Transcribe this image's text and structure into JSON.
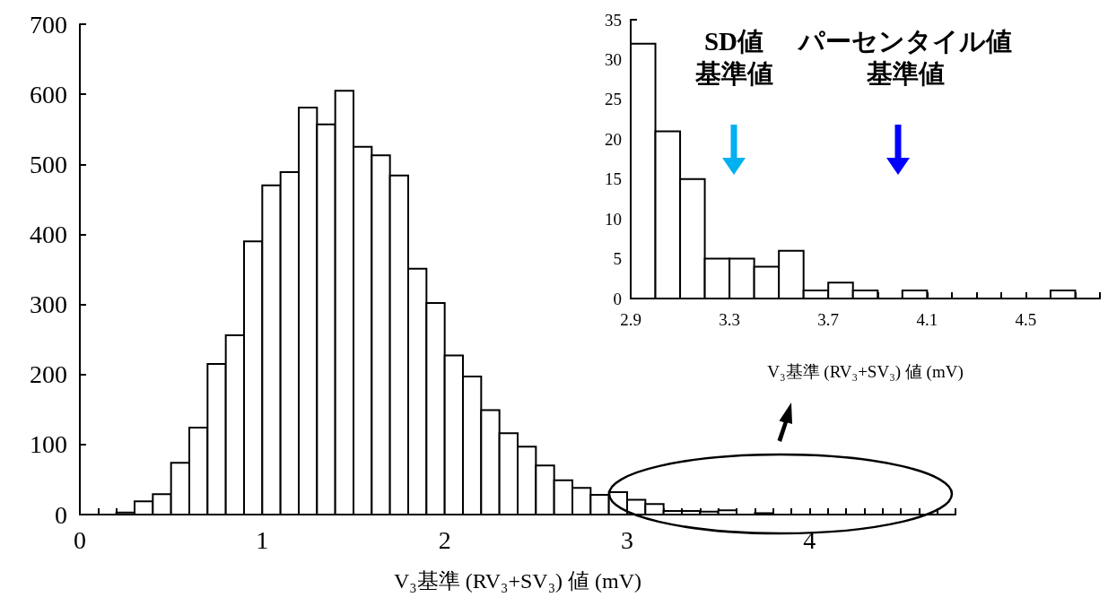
{
  "chart_data": [
    {
      "type": "histogram",
      "xlabel": "V₃基準 (RV₃+SV₃) 値 (mV)",
      "color": "#ffffff",
      "bins": [
        0,
        0.1,
        0.2,
        0.3,
        0.4,
        0.5,
        0.6,
        0.7,
        0.8,
        0.9,
        1.0,
        1.1,
        1.2,
        1.3,
        1.4,
        1.5,
        1.6,
        1.7,
        1.8,
        1.9,
        2.0,
        2.1,
        2.2,
        2.3,
        2.4,
        2.5,
        2.6,
        2.7,
        2.8,
        2.9,
        3.0,
        3.1,
        3.2,
        3.3,
        3.4,
        3.5,
        3.6,
        3.7,
        3.8,
        3.9,
        4.0,
        4.1,
        4.2,
        4.3,
        4.4,
        4.5,
        4.6,
        4.7,
        4.8
      ],
      "values": [
        0,
        0,
        3,
        19,
        29,
        74,
        124,
        215,
        256,
        390,
        470,
        489,
        581,
        557,
        605,
        525,
        513,
        484,
        351,
        302,
        227,
        197,
        149,
        116,
        97,
        70,
        49,
        38,
        28,
        32,
        21,
        15,
        5,
        5,
        4,
        6,
        null,
        2,
        null,
        0,
        null,
        0,
        0,
        0,
        0,
        0,
        null,
        0
      ],
      "xlim": [
        0,
        4.8
      ],
      "xticks": [
        0,
        {
          "value": 0.1,
          "label": null
        },
        {
          "value": 0.2,
          "label": null
        },
        {
          "value": 0.3,
          "label": null
        },
        {
          "value": 0.4,
          "label": null
        },
        {
          "value": 0.5,
          "label": null
        },
        {
          "value": 0.6,
          "label": null
        },
        {
          "value": 0.7,
          "label": null
        },
        {
          "value": 0.8,
          "label": null
        },
        {
          "value": 0.9,
          "label": null
        },
        1,
        {
          "value": 1.1,
          "label": null
        },
        {
          "value": 1.2,
          "label": null
        },
        {
          "value": 1.3,
          "label": null
        },
        {
          "value": 1.4,
          "label": null
        },
        {
          "value": 1.5,
          "label": null
        },
        {
          "value": 1.6,
          "label": null
        },
        {
          "value": 1.7,
          "label": null
        },
        {
          "value": 1.8,
          "label": null
        },
        {
          "value": 1.9,
          "label": null
        },
        2,
        {
          "value": 2.1,
          "label": null
        },
        {
          "value": 2.2,
          "label": null
        },
        {
          "value": 2.3,
          "label": null
        },
        {
          "value": 2.4,
          "label": null
        },
        {
          "value": 2.5,
          "label": null
        },
        {
          "value": 2.6,
          "label": null
        },
        {
          "value": 2.7,
          "label": null
        },
        {
          "value": 2.8,
          "label": null
        },
        {
          "value": 2.9,
          "label": null
        },
        3,
        {
          "value": 3.1,
          "label": null
        },
        {
          "value": 3.2,
          "label": null
        },
        {
          "value": 3.3,
          "label": null
        },
        {
          "value": 3.4,
          "label": null
        },
        {
          "value": 3.5,
          "label": null
        },
        {
          "value": 3.6,
          "label": null
        },
        {
          "value": 3.7,
          "label": null
        },
        {
          "value": 3.8,
          "label": null
        },
        {
          "value": 3.9,
          "label": null
        },
        4,
        {
          "value": 4.1,
          "label": null
        },
        {
          "value": 4.2,
          "label": null
        },
        {
          "value": 4.3,
          "label": null
        },
        {
          "value": 4.4,
          "label": null
        },
        {
          "value": 4.5,
          "label": null
        },
        {
          "value": 4.6,
          "label": null
        },
        {
          "value": 4.7,
          "label": null
        },
        {
          "value": 4.8,
          "label": null
        }
      ],
      "ylim": [
        0,
        700
      ],
      "yticks": [
        0,
        100,
        200,
        300,
        400,
        500,
        600,
        700
      ]
    },
    {
      "type": "histogram",
      "xlabel": "V₃基準 (RV₃+SV₃) 値 (mV)",
      "color": "#ffffff",
      "bins": [
        2.9,
        3.0,
        3.1,
        3.2,
        3.3,
        3.4,
        3.5,
        3.6,
        3.7,
        3.8,
        3.9,
        4.0,
        4.1,
        4.2,
        4.3,
        4.4,
        4.5,
        4.6,
        4.7,
        4.8
      ],
      "values": [
        32,
        21,
        15,
        5,
        5,
        4,
        6,
        1,
        2,
        1,
        0,
        1,
        0,
        0,
        0,
        0,
        0,
        1,
        0
      ],
      "xlim": [
        2.9,
        4.8
      ],
      "xticks": [
        2.9,
        {
          "value": 3.0,
          "label": null
        },
        {
          "value": 3.1,
          "label": null
        },
        {
          "value": 3.2,
          "label": null
        },
        3.3,
        {
          "value": 3.4,
          "label": null
        },
        {
          "value": 3.5,
          "label": null
        },
        {
          "value": 3.6,
          "label": null
        },
        3.7,
        {
          "value": 3.8,
          "label": null
        },
        {
          "value": 3.9,
          "label": null
        },
        {
          "value": 4.0,
          "label": null
        },
        4.1,
        {
          "value": 4.2,
          "label": null
        },
        {
          "value": 4.3,
          "label": null
        },
        {
          "value": 4.4,
          "label": null
        },
        4.5,
        {
          "value": 4.6,
          "label": null
        },
        {
          "value": 4.7,
          "label": null
        },
        {
          "value": 4.8,
          "label": null
        }
      ],
      "ylim": [
        0,
        35
      ],
      "yticks": [
        0,
        5,
        10,
        15,
        20,
        25,
        30,
        35
      ],
      "annotations": [
        "SD値",
        "基準値",
        "パーセンタイル値",
        "基準値"
      ]
    }
  ]
}
